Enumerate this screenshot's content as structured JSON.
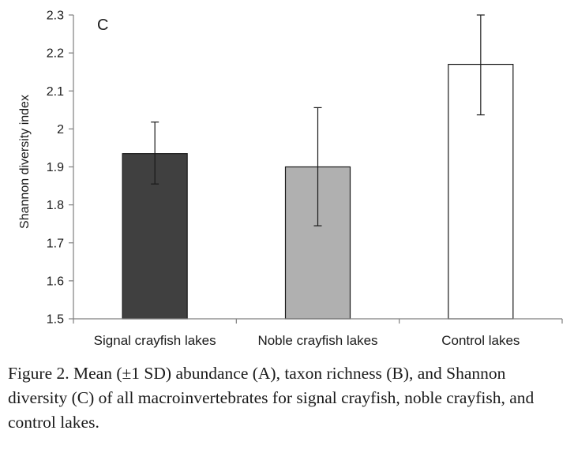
{
  "chart_data": {
    "type": "bar",
    "panel_label": "C",
    "categories": [
      "Signal crayfish lakes",
      "Noble crayfish lakes",
      "Control lakes"
    ],
    "values": [
      1.935,
      1.9,
      2.17
    ],
    "error_low": [
      1.855,
      1.745,
      2.037
    ],
    "error_high": [
      2.018,
      2.056,
      2.3
    ],
    "bar_colors": [
      "#404040",
      "#b0b0b0",
      "#ffffff"
    ],
    "xlabel": "",
    "ylabel": "Shannon diversity index",
    "ylim": [
      1.5,
      2.3
    ],
    "yticks": [
      1.5,
      1.6,
      1.7,
      1.8,
      1.9,
      2.0,
      2.1,
      2.2,
      2.3
    ],
    "ytick_labels": [
      "1.5",
      "1.6",
      "1.7",
      "1.8",
      "1.9",
      "2",
      "2.1",
      "2.2",
      "2.3"
    ],
    "grid": false,
    "legend": "none"
  },
  "caption": "Figure 2. Mean (±1 SD) abundance (A), taxon richness (B), and Shannon diversity (C) of all macroinvertebrates for signal crayfish, noble crayfish, and control lakes."
}
